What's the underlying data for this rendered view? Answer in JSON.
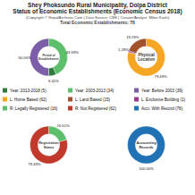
{
  "title": [
    "Shey Phoksundo Rural Municipality, Dolpa District",
    "Status of Economic Establishments (Economic Census 2018)"
  ],
  "subtitle": [
    "(Copyright © NepalArchives.Com | Data Source: CBS | Creator/Analyst: Milan Karki)",
    "Total Economic Establishments: 78"
  ],
  "chart_data": [
    {
      "type": "pie",
      "title": "Period of\nEstablishment",
      "values": [
        43.59,
        6.41,
        50.0
      ],
      "value_labels": [
        "43.59%",
        "6.41%",
        "50.00%"
      ],
      "colors": [
        "#5dbf6b",
        "#2d7a3a",
        "#7b5ea7"
      ],
      "data_labels": true
    },
    {
      "type": "pie",
      "title": "Physical\nLocation",
      "values": [
        79.49,
        1.28,
        19.23
      ],
      "value_labels": [
        "79.49%",
        "1.28%",
        "19.23%"
      ],
      "colors": [
        "#f5a623",
        "#9b3d8c",
        "#a0522d"
      ],
      "data_labels": true
    },
    {
      "type": "pie",
      "title": "Registration\nStatus",
      "values": [
        20.51,
        79.49
      ],
      "value_labels": [
        "20.51%",
        "79.49%"
      ],
      "colors": [
        "#5dbf6b",
        "#c0392b"
      ],
      "data_labels": true
    },
    {
      "type": "pie",
      "title": "Accounting\nRecords",
      "values": [
        100.0
      ],
      "value_labels": [
        "100.00%"
      ],
      "colors": [
        "#2171b5"
      ],
      "data_labels": true
    }
  ],
  "legend_items": [
    {
      "label": "Year: 2013-2018 (5)",
      "color": "#2d7a3a"
    },
    {
      "label": "Year: 2003-2013 (34)",
      "color": "#5dbf6b"
    },
    {
      "label": "Year: Before 2003 (39)",
      "color": "#7b5ea7"
    },
    {
      "label": "L: Home Based (62)",
      "color": "#f5a623"
    },
    {
      "label": "L: Land Based (15)",
      "color": "#a0522d"
    },
    {
      "label": "L: Exclusive Building (1)",
      "color": "#9b3d8c"
    },
    {
      "label": "R: Legally Registered (16)",
      "color": "#5dbf6b"
    },
    {
      "label": "R: Not Registered (62)",
      "color": "#c0392b"
    },
    {
      "label": "Acct. With Record (78)",
      "color": "#2171b5"
    }
  ]
}
